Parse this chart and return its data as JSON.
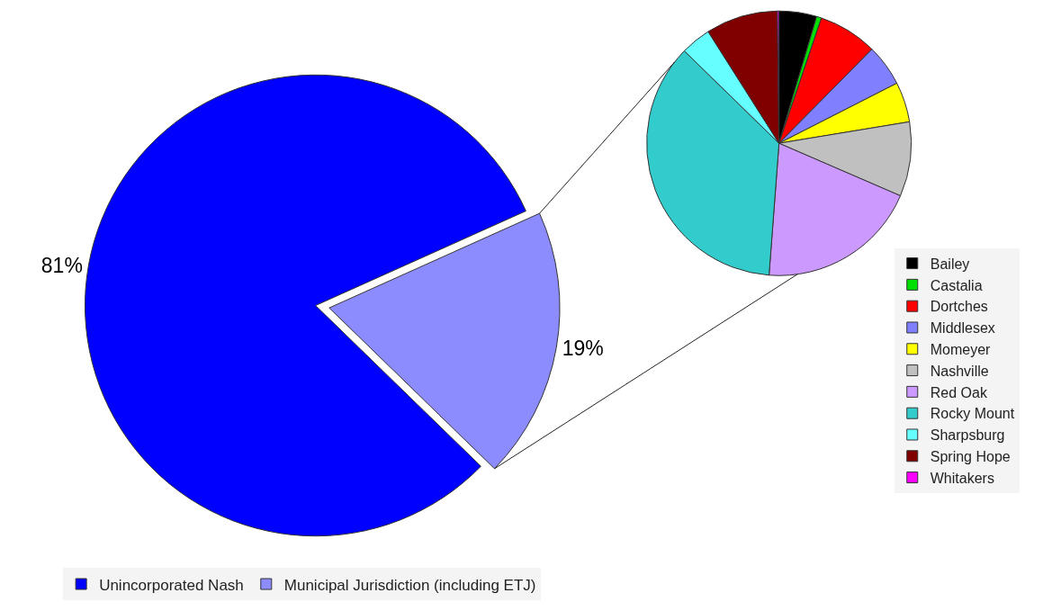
{
  "chart_data": [
    {
      "type": "pie",
      "categories": [
        "Unincorporated Nash",
        "Municipal Jurisdiction (including ETJ)"
      ],
      "values": [
        81,
        19
      ],
      "colors": [
        "#0000ff",
        "#8c8cff"
      ],
      "value_labels": [
        "81%",
        "19%"
      ],
      "legend": "bottom"
    },
    {
      "type": "pie",
      "categories": [
        "Bailey",
        "Castalia",
        "Dortches",
        "Middlesex",
        "Momeyer",
        "Nashville",
        "Red Oak",
        "Rocky Mount",
        "Sharpsburg",
        "Spring Hope",
        "Whitakers"
      ],
      "values": [
        4.6,
        0.6,
        7.2,
        5.1,
        4.9,
        9.1,
        19.7,
        36.1,
        3.7,
        8.8,
        0.2
      ],
      "colors": [
        "#000000",
        "#00e000",
        "#ff0000",
        "#8080ff",
        "#ffff00",
        "#c0c0c0",
        "#cc99ff",
        "#33cccc",
        "#66ffff",
        "#800000",
        "#ff00ff"
      ],
      "legend": "bottom right"
    }
  ]
}
